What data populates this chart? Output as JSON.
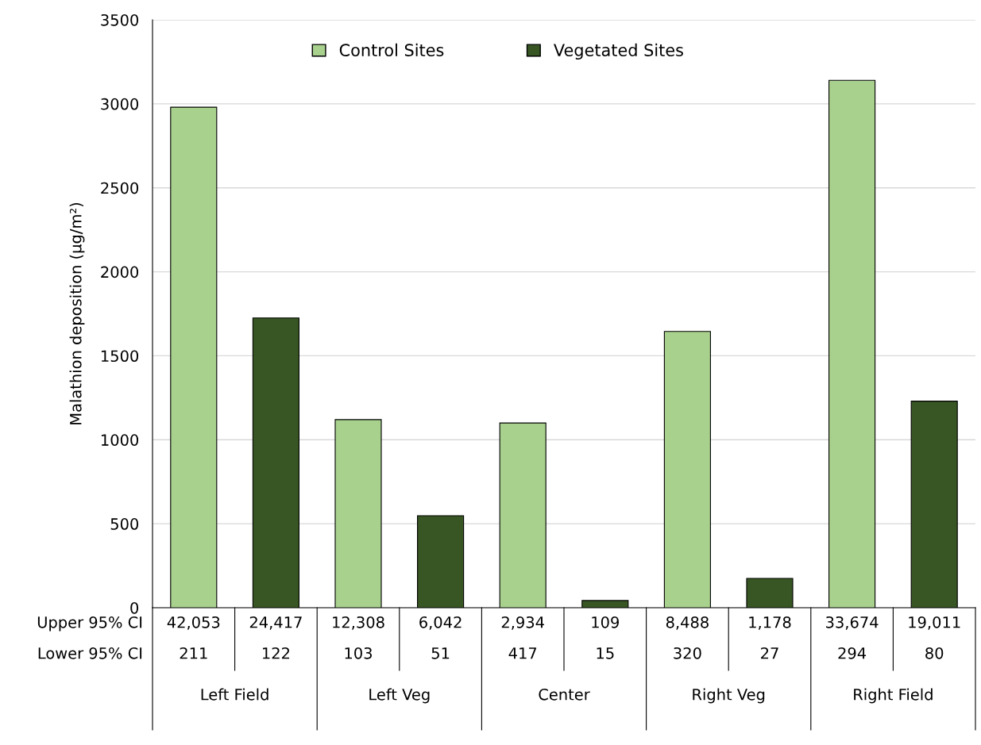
{
  "chart_data": {
    "type": "bar",
    "ylabel": "Malathion deposition (µg/m²)",
    "categories": [
      "Left Field",
      "Left Veg",
      "Center",
      "Right Veg",
      "Right Field"
    ],
    "series": [
      {
        "name": "Control Sites",
        "color": "#a9d18e",
        "values": [
          2980,
          1120,
          1100,
          1645,
          3140
        ]
      },
      {
        "name": "Vegetated Sites",
        "color": "#375623",
        "values": [
          1725,
          548,
          43,
          175,
          1230
        ]
      }
    ],
    "ylim": [
      0,
      3500
    ],
    "yticks": [
      0,
      500,
      1000,
      1500,
      2000,
      2500,
      3000,
      3500
    ],
    "grid": "y",
    "legend": "top",
    "annotations": [
      "Upper 95% CI",
      "42,053",
      "24,417",
      "12,308",
      "6,042",
      "2,934",
      "109",
      "8,488",
      "1,178",
      "33,674",
      "19,011",
      "Lower 95% CI",
      "211",
      "122",
      "103",
      "51",
      "417",
      "15",
      "320",
      "27",
      "294",
      "80"
    ]
  }
}
